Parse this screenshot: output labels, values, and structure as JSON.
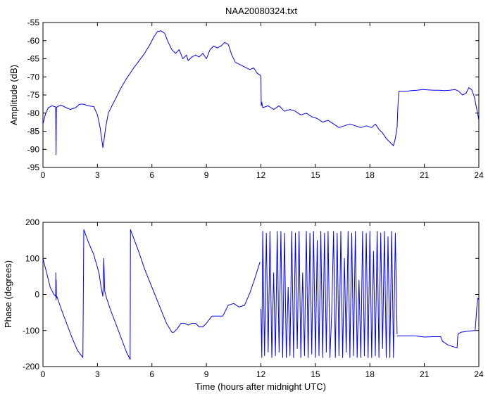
{
  "chart_data": [
    {
      "type": "line",
      "title": "NAA20080324.txt",
      "xlabel": "",
      "ylabel": "Amplitude (dB)",
      "xlim": [
        0,
        24
      ],
      "ylim": [
        -95,
        -55
      ],
      "xticks": [
        0,
        3,
        6,
        9,
        12,
        15,
        18,
        21,
        24
      ],
      "yticks": [
        -95,
        -90,
        -85,
        -80,
        -75,
        -70,
        -65,
        -60,
        -55
      ],
      "color": "#0000ff",
      "grid": false,
      "series": [
        {
          "x": [
            0,
            0.15,
            0.3,
            0.5,
            0.7,
            0.72,
            0.74,
            0.8,
            1.0,
            1.2,
            1.5,
            1.8,
            2.0,
            2.2,
            2.5,
            2.8,
            3.0,
            3.15,
            3.3,
            3.35,
            3.45,
            3.6,
            3.8,
            4.0,
            4.3,
            4.6,
            5.0,
            5.3,
            5.6,
            5.9,
            6.1,
            6.3,
            6.5,
            6.7,
            6.9,
            7.1,
            7.3,
            7.5,
            7.7,
            7.9,
            8.0,
            8.2,
            8.4,
            8.6,
            8.8,
            9.0,
            9.2,
            9.4,
            9.6,
            9.8,
            10.0,
            10.2,
            10.4,
            10.6,
            10.8,
            11.0,
            11.2,
            11.4,
            11.6,
            11.8,
            11.95,
            12.0,
            12.02,
            12.05,
            12.1,
            12.4,
            12.7,
            13.0,
            13.3,
            13.6,
            13.9,
            14.2,
            14.5,
            14.8,
            15.1,
            15.4,
            15.7,
            16.0,
            16.3,
            16.6,
            16.9,
            17.2,
            17.5,
            17.8,
            18.1,
            18.3,
            18.5,
            18.7,
            18.9,
            19.1,
            19.3,
            19.4,
            19.5,
            19.55,
            19.6,
            19.8,
            20.0,
            20.3,
            20.6,
            20.9,
            21.2,
            21.5,
            21.8,
            22.1,
            22.4,
            22.7,
            22.9,
            23.1,
            23.3,
            23.45,
            23.6,
            23.75,
            23.85,
            23.95,
            24.0
          ],
          "y": [
            -83,
            -80,
            -78.5,
            -78,
            -78.3,
            -91.5,
            -78.5,
            -78.2,
            -77.8,
            -78.3,
            -79,
            -78.5,
            -77.6,
            -77.5,
            -78,
            -78.2,
            -80.5,
            -84,
            -89.5,
            -88,
            -84,
            -80,
            -78,
            -76,
            -73,
            -70.5,
            -67.5,
            -65.5,
            -63.5,
            -61,
            -59,
            -57.5,
            -57.3,
            -58,
            -60.5,
            -62.5,
            -63.5,
            -62.5,
            -65,
            -64,
            -65.5,
            -64.5,
            -64,
            -64.5,
            -63.5,
            -65,
            -62.5,
            -61.5,
            -62,
            -61.5,
            -60.5,
            -61,
            -64,
            -66,
            -66.5,
            -67,
            -67.5,
            -68,
            -67.5,
            -69,
            -69.5,
            -70,
            -78,
            -77,
            -78.5,
            -78,
            -79,
            -78,
            -79.5,
            -79,
            -79.5,
            -80.5,
            -80,
            -81,
            -81.5,
            -82.5,
            -82,
            -83,
            -84,
            -83.5,
            -83,
            -83.5,
            -84,
            -83.5,
            -84,
            -83,
            -84.5,
            -85.5,
            -87,
            -88,
            -89,
            -87,
            -84,
            -77.5,
            -74,
            -74,
            -74,
            -73.8,
            -73.7,
            -73.5,
            -73.6,
            -73.7,
            -73.7,
            -73.8,
            -73.7,
            -73.5,
            -74,
            -75,
            -74.5,
            -73,
            -73.5,
            -75.5,
            -78,
            -80.5,
            -82
          ]
        }
      ]
    },
    {
      "type": "line",
      "title": "",
      "xlabel": "Time (hours after midnight UTC)",
      "ylabel": "Phase (degrees)",
      "xlim": [
        0,
        24
      ],
      "ylim": [
        -200,
        200
      ],
      "xticks": [
        0,
        3,
        6,
        9,
        12,
        15,
        18,
        21,
        24
      ],
      "yticks": [
        -200,
        -100,
        0,
        100,
        200
      ],
      "color": "#0000ff",
      "grid": false,
      "series": [
        {
          "x": [
            0,
            0.2,
            0.4,
            0.6,
            0.7,
            0.71,
            0.72,
            0.73,
            0.74,
            0.75,
            0.8,
            1.0,
            1.3,
            1.6,
            1.9,
            2.2,
            2.25,
            2.5,
            2.8,
            3.0,
            3.1,
            3.2,
            3.3,
            3.35,
            3.4,
            3.5,
            3.7,
            4.0,
            4.3,
            4.6,
            4.8,
            4.82,
            5.0,
            5.3,
            5.6,
            6.0,
            6.4,
            6.8,
            7.1,
            7.2,
            7.4,
            7.6,
            7.8,
            8.0,
            8.2,
            8.4,
            8.6,
            8.8,
            9.0,
            9.3,
            9.6,
            9.9,
            10.2,
            10.5,
            10.8,
            11.1,
            11.4,
            11.7,
            11.95
          ],
          "y": [
            100,
            60,
            20,
            0,
            -5,
            60,
            -15,
            40,
            -10,
            -5,
            -10,
            -40,
            -80,
            -120,
            -155,
            -175,
            180,
            145,
            110,
            75,
            55,
            20,
            -5,
            100,
            10,
            -10,
            -40,
            -80,
            -120,
            -160,
            -180,
            180,
            155,
            115,
            70,
            20,
            -30,
            -80,
            -105,
            -105,
            -95,
            -80,
            -80,
            -85,
            -80,
            -80,
            -90,
            -90,
            -80,
            -60,
            -60,
            -60,
            -30,
            -25,
            -35,
            -30,
            5,
            50,
            90
          ]
        },
        {
          "x": [
            12.0,
            12.05,
            12.1,
            12.2,
            12.3,
            12.4,
            12.5,
            12.6,
            12.7,
            12.8,
            12.9,
            13.0,
            13.1,
            13.2,
            13.3,
            13.4,
            13.5,
            13.6,
            13.7,
            13.8,
            13.9,
            14.0,
            14.1,
            14.2,
            14.3,
            14.4,
            14.5,
            14.6,
            14.7,
            14.8,
            14.9,
            15.0,
            15.1,
            15.2,
            15.3,
            15.4,
            15.5,
            15.6,
            15.7,
            15.8,
            15.9,
            16.0,
            16.1,
            16.2,
            16.3,
            16.4,
            16.5,
            16.6,
            16.7,
            16.8,
            16.9,
            17.0,
            17.1,
            17.2,
            17.3,
            17.4,
            17.5,
            17.6,
            17.7,
            17.8,
            17.9,
            18.0,
            18.1,
            18.2,
            18.3,
            18.4,
            18.5,
            18.6,
            18.7,
            18.8,
            18.9,
            19.0,
            19.1,
            19.2,
            19.3,
            19.4,
            19.5
          ],
          "y": [
            -40,
            -175,
            175,
            -170,
            170,
            -160,
            175,
            -175,
            60,
            -170,
            175,
            -160,
            175,
            -175,
            170,
            -175,
            20,
            -170,
            175,
            -175,
            170,
            -150,
            175,
            -175,
            60,
            -170,
            175,
            -175,
            170,
            -165,
            175,
            -175,
            150,
            -170,
            175,
            -175,
            170,
            -160,
            175,
            -175,
            -50,
            175,
            -175,
            170,
            -170,
            175,
            -175,
            100,
            -160,
            175,
            -175,
            170,
            -170,
            175,
            -175,
            40,
            -175,
            175,
            -170,
            170,
            -175,
            175,
            -175,
            120,
            -170,
            175,
            -175,
            170,
            -150,
            175,
            -175,
            160,
            -175,
            175,
            -175,
            170,
            -110
          ]
        },
        {
          "x": [
            19.5,
            19.6,
            20.0,
            20.5,
            21.0,
            21.5,
            21.9,
            22.0,
            22.3,
            22.6,
            22.8,
            22.85,
            23.0,
            23.4,
            23.8,
            23.9,
            23.95,
            24.0
          ],
          "y": [
            -115,
            -115,
            -115,
            -115,
            -118,
            -117,
            -117,
            -130,
            -140,
            -145,
            -148,
            -110,
            -105,
            -102,
            -100,
            -30,
            -10,
            -15
          ]
        }
      ]
    }
  ]
}
